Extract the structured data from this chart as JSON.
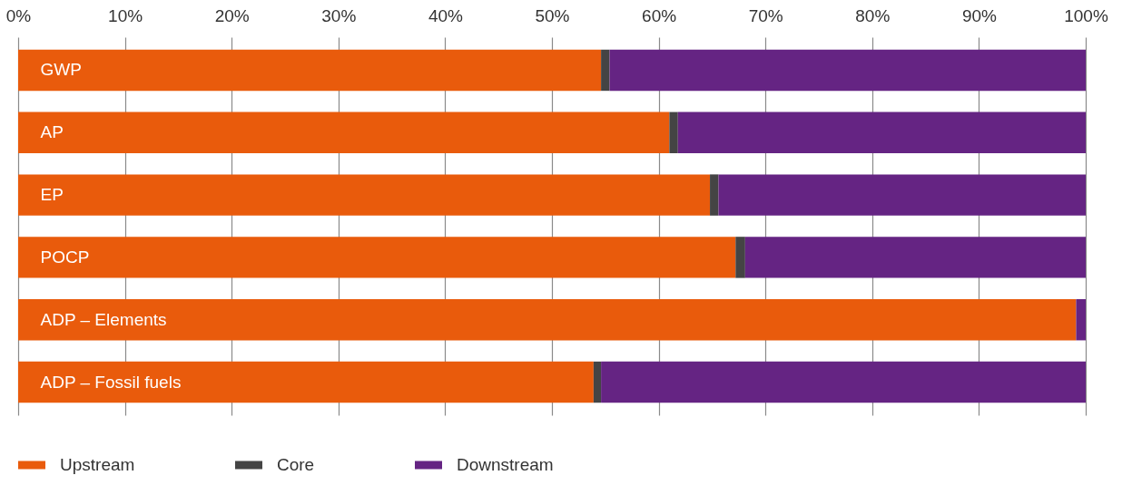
{
  "chart_data": {
    "type": "bar",
    "orientation": "horizontal",
    "stacked": true,
    "categories": [
      "GWP",
      "AP",
      "EP",
      "POCP",
      "ADP – Elements",
      "ADP – Fossil fuels"
    ],
    "series": [
      {
        "name": "Upstream",
        "color": "#e95b0c",
        "values": [
          54.6,
          61.0,
          64.8,
          67.2,
          99.1,
          53.9
        ]
      },
      {
        "name": "Core",
        "color": "#444444",
        "values": [
          0.8,
          0.8,
          0.8,
          0.9,
          0,
          0.7
        ]
      },
      {
        "name": "Downstream",
        "color": "#652483",
        "values": [
          44.6,
          38.2,
          34.4,
          31.9,
          0.9,
          45.4
        ]
      }
    ],
    "xlim": [
      0,
      100
    ],
    "xticks": [
      {
        "value": 0,
        "label": "0%"
      },
      {
        "value": 10,
        "label": "10%"
      },
      {
        "value": 20,
        "label": "20%"
      },
      {
        "value": 30,
        "label": "30%"
      },
      {
        "value": 40,
        "label": "40%"
      },
      {
        "value": 50,
        "label": "50%"
      },
      {
        "value": 60,
        "label": "60%"
      },
      {
        "value": 70,
        "label": "70%"
      },
      {
        "value": 80,
        "label": "80%"
      },
      {
        "value": 90,
        "label": "90%"
      },
      {
        "value": 100,
        "label": "100%"
      }
    ],
    "grid": "x",
    "legend": "bottom"
  }
}
